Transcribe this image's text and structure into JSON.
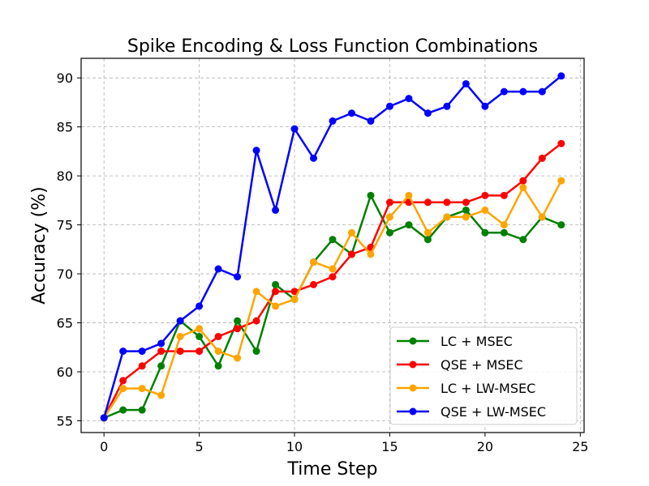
{
  "chart_data": {
    "type": "line",
    "title": "Spike Encoding & Loss Function Combinations",
    "xlabel": "Time Step",
    "ylabel": "Accuracy (%)",
    "xlim": [
      -1.2,
      25.2
    ],
    "ylim": [
      53.8,
      92.0
    ],
    "xticks": [
      0,
      5,
      10,
      15,
      20,
      25
    ],
    "yticks": [
      55,
      60,
      65,
      70,
      75,
      80,
      85,
      90
    ],
    "grid": true,
    "legend_position": "lower-right",
    "x": [
      0,
      1,
      2,
      3,
      4,
      5,
      6,
      7,
      8,
      9,
      10,
      11,
      12,
      13,
      14,
      15,
      16,
      17,
      18,
      19,
      20,
      21,
      22,
      23,
      24
    ],
    "series": [
      {
        "name": "LC + MSEC",
        "color": "#008000",
        "values": [
          55.3,
          56.1,
          56.1,
          60.6,
          65.2,
          63.6,
          60.6,
          65.2,
          62.1,
          68.9,
          67.4,
          71.2,
          73.5,
          72.0,
          78.0,
          74.2,
          75.0,
          73.5,
          75.8,
          76.5,
          74.2,
          74.2,
          73.5,
          75.8,
          75.0
        ]
      },
      {
        "name": "QSE + MSEC",
        "color": "#ff0000",
        "values": [
          55.3,
          59.1,
          60.6,
          62.1,
          62.1,
          62.1,
          63.6,
          64.4,
          65.2,
          68.2,
          68.2,
          68.9,
          69.7,
          72.0,
          72.7,
          77.3,
          77.3,
          77.3,
          77.3,
          77.3,
          78.0,
          78.0,
          79.5,
          81.8,
          83.3
        ]
      },
      {
        "name": "LC + LW-MSEC",
        "color": "#ffa500",
        "values": [
          55.3,
          58.3,
          58.3,
          57.6,
          63.6,
          64.4,
          62.1,
          61.4,
          68.2,
          66.7,
          67.4,
          71.2,
          70.5,
          74.2,
          72.0,
          75.8,
          78.0,
          74.2,
          75.8,
          75.8,
          76.5,
          75.0,
          78.8,
          75.8,
          79.5
        ]
      },
      {
        "name": "QSE + LW-MSEC",
        "color": "#0000ff",
        "values": [
          55.3,
          62.1,
          62.1,
          62.9,
          65.2,
          66.7,
          70.5,
          69.7,
          82.6,
          76.5,
          84.8,
          81.8,
          85.6,
          86.4,
          85.6,
          87.1,
          87.9,
          86.4,
          87.1,
          89.4,
          87.1,
          88.6,
          88.6,
          88.6,
          90.2
        ]
      }
    ]
  }
}
